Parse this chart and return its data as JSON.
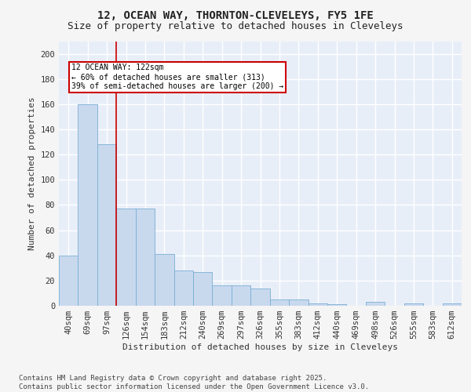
{
  "title_line1": "12, OCEAN WAY, THORNTON-CLEVELEYS, FY5 1FE",
  "title_line2": "Size of property relative to detached houses in Cleveleys",
  "xlabel": "Distribution of detached houses by size in Cleveleys",
  "ylabel": "Number of detached properties",
  "categories": [
    "40sqm",
    "69sqm",
    "97sqm",
    "126sqm",
    "154sqm",
    "183sqm",
    "212sqm",
    "240sqm",
    "269sqm",
    "297sqm",
    "326sqm",
    "355sqm",
    "383sqm",
    "412sqm",
    "440sqm",
    "469sqm",
    "498sqm",
    "526sqm",
    "555sqm",
    "583sqm",
    "612sqm"
  ],
  "values": [
    40,
    160,
    128,
    77,
    77,
    41,
    28,
    27,
    16,
    16,
    14,
    5,
    5,
    2,
    1,
    0,
    3,
    0,
    2,
    0,
    2
  ],
  "bar_color": "#c8d9ee",
  "bar_edge_color": "#7aaed4",
  "vline_color": "#cc0000",
  "annotation_text": "12 OCEAN WAY: 122sqm\n← 60% of detached houses are smaller (313)\n39% of semi-detached houses are larger (200) →",
  "annotation_box_color": "#cc0000",
  "annotation_box_fill": "#ffffff",
  "ylim": [
    0,
    210
  ],
  "yticks": [
    0,
    20,
    40,
    60,
    80,
    100,
    120,
    140,
    160,
    180,
    200
  ],
  "plot_bg_color": "#e8eef8",
  "grid_color": "#ffffff",
  "footer_line1": "Contains HM Land Registry data © Crown copyright and database right 2025.",
  "footer_line2": "Contains public sector information licensed under the Open Government Licence v3.0.",
  "title_fontsize": 10,
  "subtitle_fontsize": 9,
  "label_fontsize": 8,
  "tick_fontsize": 7.5,
  "footer_fontsize": 6.5
}
